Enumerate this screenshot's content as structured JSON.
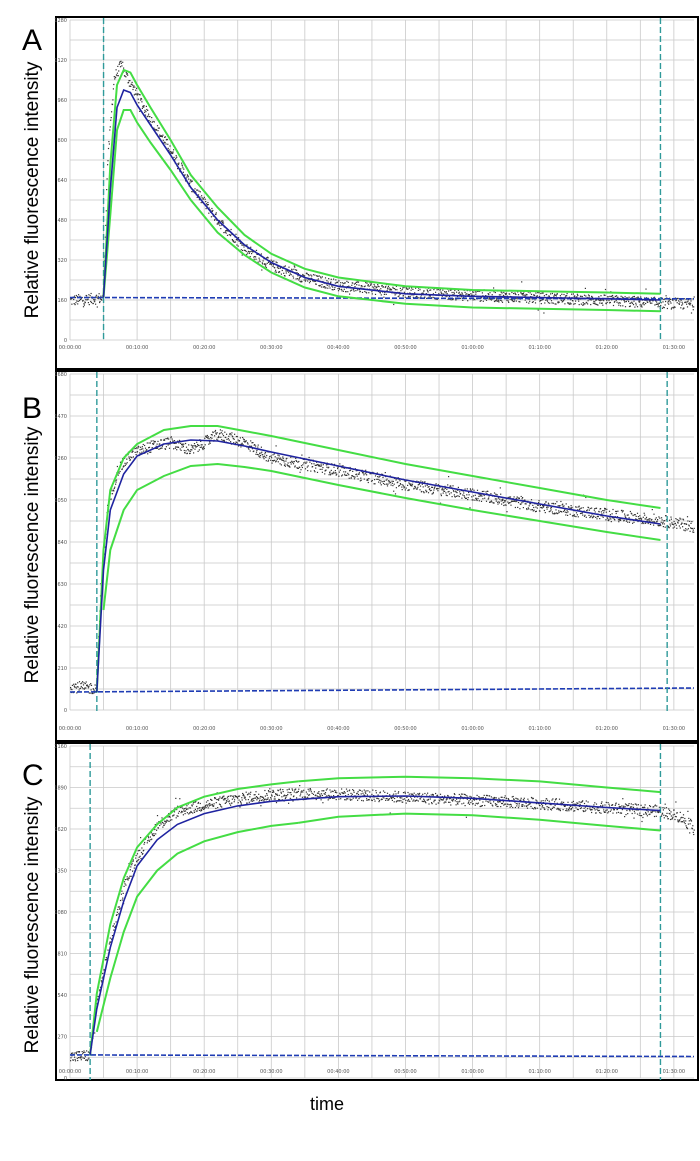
{
  "figure": {
    "xlabel": "time"
  },
  "chart_data": [
    {
      "panel": "A",
      "type": "scatter",
      "ylabel": "Relative fluorescence intensity",
      "x_ticks": [
        "00:00:00",
        "00:10:00",
        "00:20:00",
        "00:30:00",
        "00:40:00",
        "00:50:00",
        "01:00:00",
        "01:10:00",
        "01:20:00",
        "01:30:00"
      ],
      "y_ticks": [
        "0",
        "160",
        "320",
        "480",
        "640",
        "800",
        "960",
        "1120",
        "1280"
      ],
      "xlim_min": [
        0,
        93
      ],
      "ylim": [
        0,
        1280
      ],
      "grid": true,
      "vlines_min": [
        5,
        88
      ],
      "baseline": [
        [
          0,
          170
        ],
        [
          93,
          165
        ]
      ],
      "fit": [
        [
          5,
          170
        ],
        [
          6,
          600
        ],
        [
          7,
          930
        ],
        [
          8,
          1000
        ],
        [
          9,
          990
        ],
        [
          10,
          940
        ],
        [
          12,
          860
        ],
        [
          15,
          740
        ],
        [
          18,
          610
        ],
        [
          22,
          480
        ],
        [
          26,
          380
        ],
        [
          30,
          310
        ],
        [
          35,
          250
        ],
        [
          40,
          215
        ],
        [
          50,
          185
        ],
        [
          60,
          175
        ],
        [
          70,
          170
        ],
        [
          80,
          165
        ],
        [
          88,
          160
        ]
      ],
      "band_upper": [
        [
          5,
          170
        ],
        [
          6,
          700
        ],
        [
          7,
          1020
        ],
        [
          8,
          1080
        ],
        [
          9,
          1070
        ],
        [
          10,
          1020
        ],
        [
          12,
          930
        ],
        [
          15,
          800
        ],
        [
          18,
          660
        ],
        [
          22,
          530
        ],
        [
          26,
          420
        ],
        [
          30,
          345
        ],
        [
          35,
          285
        ],
        [
          40,
          250
        ],
        [
          50,
          215
        ],
        [
          60,
          200
        ],
        [
          70,
          195
        ],
        [
          80,
          190
        ],
        [
          88,
          185
        ]
      ],
      "band_lower": [
        [
          5,
          170
        ],
        [
          6,
          500
        ],
        [
          7,
          840
        ],
        [
          8,
          920
        ],
        [
          9,
          920
        ],
        [
          10,
          870
        ],
        [
          12,
          790
        ],
        [
          15,
          680
        ],
        [
          18,
          560
        ],
        [
          22,
          430
        ],
        [
          26,
          340
        ],
        [
          30,
          270
        ],
        [
          35,
          210
        ],
        [
          40,
          175
        ],
        [
          50,
          145
        ],
        [
          60,
          130
        ],
        [
          70,
          125
        ],
        [
          80,
          120
        ],
        [
          88,
          115
        ]
      ],
      "data_trend": [
        [
          0,
          160
        ],
        [
          4.9,
          170
        ],
        [
          5.5,
          700
        ],
        [
          6.5,
          1050
        ],
        [
          7.5,
          1100
        ],
        [
          8.5,
          1050
        ],
        [
          10,
          980
        ],
        [
          12,
          880
        ],
        [
          15,
          760
        ],
        [
          18,
          620
        ],
        [
          22,
          480
        ],
        [
          26,
          370
        ],
        [
          30,
          300
        ],
        [
          35,
          250
        ],
        [
          40,
          220
        ],
        [
          50,
          195
        ],
        [
          60,
          180
        ],
        [
          70,
          170
        ],
        [
          80,
          160
        ],
        [
          88,
          150
        ],
        [
          93,
          145
        ]
      ],
      "colors": {
        "data": "#333333",
        "fit": "#1f23a0",
        "band": "#44dd44",
        "baseline": "#1f3cb4",
        "vline": "#2f9a9a"
      }
    },
    {
      "panel": "B",
      "type": "scatter",
      "ylabel": "Relative fluorescence intensity",
      "x_ticks": [
        "00:00:00",
        "00:10:00",
        "00:20:00",
        "00:30:00",
        "00:40:00",
        "00:50:00",
        "01:00:00",
        "01:10:00",
        "01:20:00",
        "01:30:00"
      ],
      "y_ticks": [
        "0",
        "210",
        "420",
        "630",
        "840",
        "1050",
        "1260",
        "1470",
        "1680"
      ],
      "xlim_min": [
        0,
        93
      ],
      "ylim": [
        0,
        1680
      ],
      "grid": true,
      "vlines_min": [
        4,
        89
      ],
      "baseline": [
        [
          0,
          90
        ],
        [
          93,
          110
        ]
      ],
      "fit": [
        [
          4,
          90
        ],
        [
          5,
          700
        ],
        [
          6,
          1000
        ],
        [
          8,
          1180
        ],
        [
          10,
          1270
        ],
        [
          14,
          1330
        ],
        [
          18,
          1350
        ],
        [
          22,
          1345
        ],
        [
          26,
          1320
        ],
        [
          30,
          1290
        ],
        [
          40,
          1220
        ],
        [
          50,
          1150
        ],
        [
          60,
          1090
        ],
        [
          70,
          1030
        ],
        [
          80,
          970
        ],
        [
          88,
          930
        ]
      ],
      "band_upper": [
        [
          4,
          90
        ],
        [
          5,
          800
        ],
        [
          6,
          1100
        ],
        [
          8,
          1260
        ],
        [
          10,
          1330
        ],
        [
          14,
          1400
        ],
        [
          18,
          1420
        ],
        [
          22,
          1420
        ],
        [
          26,
          1395
        ],
        [
          30,
          1370
        ],
        [
          40,
          1300
        ],
        [
          50,
          1230
        ],
        [
          60,
          1170
        ],
        [
          70,
          1110
        ],
        [
          80,
          1050
        ],
        [
          88,
          1010
        ]
      ],
      "band_lower": [
        [
          5,
          500
        ],
        [
          6,
          800
        ],
        [
          8,
          1000
        ],
        [
          10,
          1100
        ],
        [
          14,
          1170
        ],
        [
          18,
          1220
        ],
        [
          22,
          1230
        ],
        [
          26,
          1215
        ],
        [
          30,
          1195
        ],
        [
          40,
          1125
        ],
        [
          50,
          1060
        ],
        [
          60,
          1000
        ],
        [
          70,
          945
        ],
        [
          80,
          890
        ],
        [
          88,
          850
        ]
      ],
      "data_trend": [
        [
          0,
          120
        ],
        [
          3.9,
          110
        ],
        [
          4.5,
          600
        ],
        [
          5.5,
          1000
        ],
        [
          7,
          1200
        ],
        [
          9,
          1280
        ],
        [
          12,
          1320
        ],
        [
          15,
          1340
        ],
        [
          18,
          1300
        ],
        [
          22,
          1380
        ],
        [
          26,
          1340
        ],
        [
          30,
          1260
        ],
        [
          40,
          1200
        ],
        [
          50,
          1130
        ],
        [
          60,
          1080
        ],
        [
          70,
          1020
        ],
        [
          80,
          980
        ],
        [
          88,
          950
        ],
        [
          93,
          920
        ]
      ],
      "colors": {
        "data": "#333333",
        "fit": "#1f23a0",
        "band": "#44dd44",
        "baseline": "#1f3cb4",
        "vline": "#2f9a9a"
      }
    },
    {
      "panel": "C",
      "type": "scatter",
      "ylabel": "Relative fluorescence intensity",
      "x_ticks": [
        "00:00:00",
        "00:10:00",
        "00:20:00",
        "00:30:00",
        "00:40:00",
        "00:50:00",
        "01:00:00",
        "01:10:00",
        "01:20:00",
        "01:30:00"
      ],
      "y_ticks": [
        "0",
        "270",
        "540",
        "810",
        "1080",
        "1350",
        "1620",
        "1890",
        "2160"
      ],
      "xlim_min": [
        0,
        93
      ],
      "ylim": [
        0,
        2160
      ],
      "grid": true,
      "vlines_min": [
        3,
        88
      ],
      "baseline": [
        [
          0,
          150
        ],
        [
          93,
          140
        ]
      ],
      "fit": [
        [
          3,
          150
        ],
        [
          4,
          450
        ],
        [
          6,
          850
        ],
        [
          8,
          1150
        ],
        [
          10,
          1380
        ],
        [
          13,
          1550
        ],
        [
          16,
          1650
        ],
        [
          20,
          1720
        ],
        [
          25,
          1770
        ],
        [
          30,
          1800
        ],
        [
          40,
          1830
        ],
        [
          50,
          1835
        ],
        [
          60,
          1820
        ],
        [
          70,
          1790
        ],
        [
          80,
          1760
        ],
        [
          88,
          1740
        ]
      ],
      "band_upper": [
        [
          3,
          150
        ],
        [
          4,
          550
        ],
        [
          6,
          1000
        ],
        [
          8,
          1300
        ],
        [
          10,
          1500
        ],
        [
          13,
          1650
        ],
        [
          16,
          1760
        ],
        [
          20,
          1830
        ],
        [
          25,
          1880
        ],
        [
          30,
          1910
        ],
        [
          34,
          1930
        ]
      ],
      "band_upper2": [
        [
          34,
          1930
        ],
        [
          40,
          1950
        ],
        [
          50,
          1960
        ],
        [
          60,
          1950
        ],
        [
          70,
          1930
        ],
        [
          80,
          1890
        ],
        [
          88,
          1860
        ]
      ],
      "band_lower": [
        [
          4,
          300
        ],
        [
          6,
          650
        ],
        [
          8,
          950
        ],
        [
          10,
          1180
        ],
        [
          13,
          1350
        ],
        [
          16,
          1460
        ],
        [
          20,
          1540
        ],
        [
          25,
          1600
        ],
        [
          30,
          1640
        ],
        [
          34,
          1660
        ]
      ],
      "band_lower2": [
        [
          34,
          1660
        ],
        [
          40,
          1700
        ],
        [
          50,
          1720
        ],
        [
          60,
          1710
        ],
        [
          70,
          1680
        ],
        [
          80,
          1640
        ],
        [
          88,
          1610
        ]
      ],
      "data_trend": [
        [
          0,
          140
        ],
        [
          2.9,
          150
        ],
        [
          4,
          500
        ],
        [
          6,
          900
        ],
        [
          8,
          1250
        ],
        [
          10,
          1450
        ],
        [
          13,
          1650
        ],
        [
          16,
          1740
        ],
        [
          20,
          1780
        ],
        [
          25,
          1820
        ],
        [
          30,
          1850
        ],
        [
          40,
          1850
        ],
        [
          50,
          1830
        ],
        [
          60,
          1810
        ],
        [
          70,
          1790
        ],
        [
          80,
          1760
        ],
        [
          88,
          1740
        ],
        [
          91,
          1700
        ],
        [
          93,
          1620
        ]
      ],
      "colors": {
        "data": "#333333",
        "fit": "#1f23a0",
        "band": "#44dd44",
        "baseline": "#1f3cb4",
        "vline": "#2f9a9a"
      }
    }
  ]
}
